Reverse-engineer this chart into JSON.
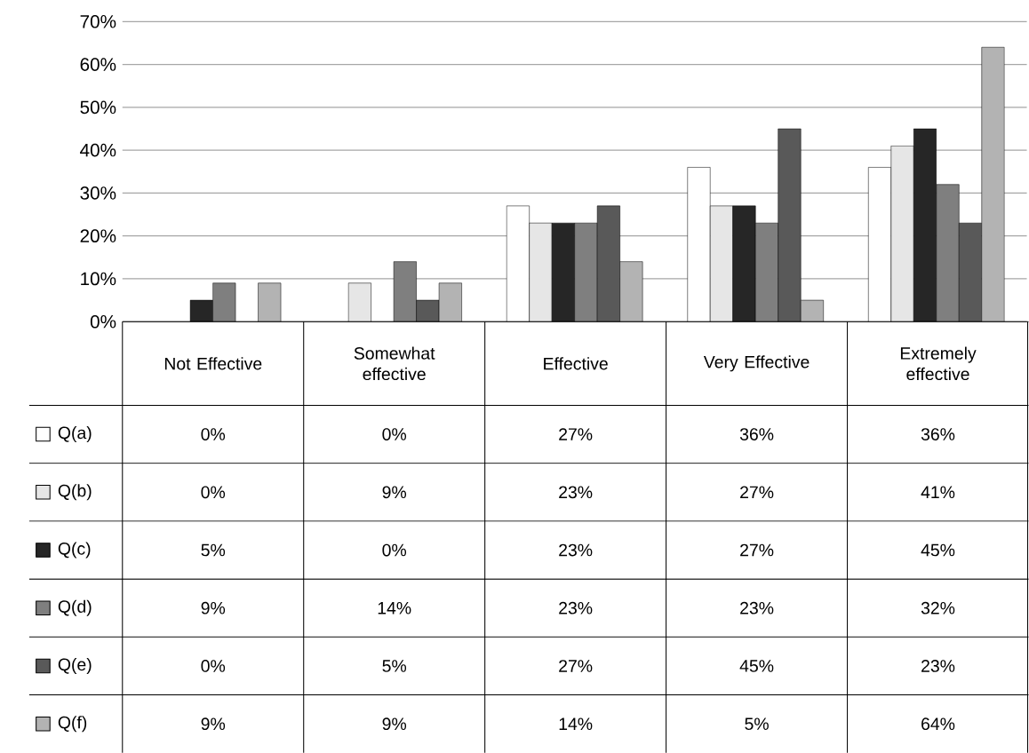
{
  "chart_data": {
    "type": "bar",
    "categories": [
      "Not Effective",
      "Somewhat effective",
      "Effective",
      "Very Effective",
      "Extremely effective"
    ],
    "series": [
      {
        "name": "Q(a)",
        "color": "#ffffff",
        "values": [
          0,
          0,
          27,
          36,
          36
        ],
        "value_labels": [
          "0%",
          "0%",
          "27%",
          "36%",
          "36%"
        ]
      },
      {
        "name": "Q(b)",
        "color": "#e6e6e6",
        "values": [
          0,
          9,
          23,
          27,
          41
        ],
        "value_labels": [
          "0%",
          "9%",
          "23%",
          "27%",
          "41%"
        ]
      },
      {
        "name": "Q(c)",
        "color": "#262626",
        "values": [
          5,
          0,
          23,
          27,
          45
        ],
        "value_labels": [
          "5%",
          "0%",
          "23%",
          "27%",
          "45%"
        ]
      },
      {
        "name": "Q(d)",
        "color": "#7f7f7f",
        "values": [
          9,
          14,
          23,
          23,
          32
        ],
        "value_labels": [
          "9%",
          "14%",
          "23%",
          "23%",
          "32%"
        ]
      },
      {
        "name": "Q(e)",
        "color": "#595959",
        "values": [
          0,
          5,
          27,
          45,
          23
        ],
        "value_labels": [
          "0%",
          "5%",
          "27%",
          "45%",
          "23%"
        ]
      },
      {
        "name": "Q(f)",
        "color": "#b3b3b3",
        "values": [
          9,
          9,
          14,
          5,
          64
        ],
        "value_labels": [
          "9%",
          "9%",
          "14%",
          "5%",
          "64%"
        ]
      }
    ],
    "ylim": [
      0,
      70
    ],
    "yticks": [
      {
        "value": 0,
        "label": "0%"
      },
      {
        "value": 10,
        "label": "10%"
      },
      {
        "value": 20,
        "label": "20%"
      },
      {
        "value": 30,
        "label": "30%"
      },
      {
        "value": 40,
        "label": "40%"
      },
      {
        "value": 50,
        "label": "50%"
      },
      {
        "value": 60,
        "label": "60%"
      },
      {
        "value": 70,
        "label": "70%"
      }
    ],
    "grid": "y",
    "legend": "bottom"
  }
}
